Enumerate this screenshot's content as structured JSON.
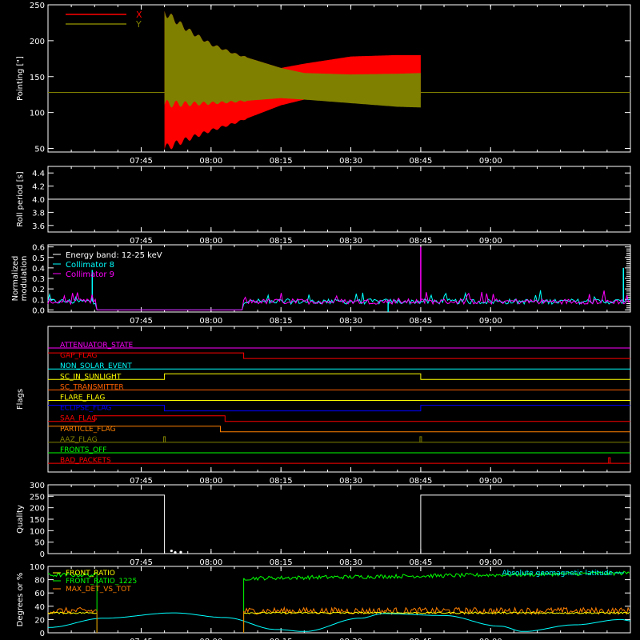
{
  "time_axis": {
    "range_min": [
      25,
      150
    ],
    "tick_labels": [
      "07:45",
      "08:00",
      "08:15",
      "08:30",
      "08:45",
      "09:00"
    ],
    "tick_values_min": [
      45,
      60,
      75,
      90,
      105,
      120
    ]
  },
  "colors": {
    "background": "#000000",
    "axes": "#ffffff",
    "red": "#ff0000",
    "olive": "#808000",
    "cyan": "#00ffff",
    "magenta": "#ff00ff",
    "white": "#ffffff",
    "green": "#00ff00",
    "orange": "#ff8000",
    "yellow": "#ffff00",
    "blue": "#0000ff",
    "sun_orange": "#ff6000"
  },
  "chart_data": [
    {
      "type": "area",
      "ylabel": "Pointing [\"]",
      "ylim": [
        45,
        250
      ],
      "yticks": [
        "50",
        "100",
        "150",
        "200",
        "250"
      ],
      "ytick_values": [
        50,
        100,
        150,
        200,
        250
      ],
      "legend_placement": "top-left",
      "series": [
        {
          "name": "X",
          "color": "red",
          "envelope": {
            "x": [
              50,
              55,
              60,
              65,
              75,
              80,
              90,
              100,
              105
            ],
            "ymin": [
              50,
              63,
              75,
              85,
              110,
              118,
              122,
              122,
              122
            ],
            "ymax": [
              240,
              215,
              195,
              182,
              162,
              168,
              178,
              180,
              180
            ]
          }
        },
        {
          "name": "Y",
          "color": "olive",
          "envelope": {
            "x": [
              50,
              55,
              60,
              65,
              75,
              80,
              90,
              100,
              105
            ],
            "ymin": [
              112,
              112,
              113,
              115,
              120,
              118,
              113,
              108,
              107
            ],
            "ymax": [
              240,
              215,
              195,
              182,
              162,
              155,
              153,
              154,
              155
            ]
          }
        }
      ],
      "reference_line": {
        "y": 128,
        "color": "olive"
      }
    },
    {
      "type": "line",
      "ylabel": "Roll period [s]",
      "ylim": [
        3.5,
        4.5
      ],
      "yticks": [
        "3.6",
        "3.8",
        "4.0",
        "4.2",
        "4.4"
      ],
      "ytick_values": [
        3.6,
        3.8,
        4.0,
        4.2,
        4.4
      ],
      "series": [
        {
          "color": "white",
          "x": [
            25,
            150
          ],
          "y": [
            4.0,
            4.0
          ]
        }
      ]
    },
    {
      "type": "line",
      "ylabel": "Normalized\nmodulation",
      "ylabel_lines": [
        "Normalized",
        "modulation"
      ],
      "ylim": [
        -0.02,
        0.62
      ],
      "yticks": [
        "0.0",
        "0.1",
        "0.2",
        "0.3",
        "0.4",
        "0.5",
        "0.6"
      ],
      "ytick_values": [
        0.0,
        0.1,
        0.2,
        0.3,
        0.4,
        0.5,
        0.6
      ],
      "legend_placement": "top-left",
      "legend": [
        {
          "label": "Energy band: 12-25 keV",
          "color": "white"
        },
        {
          "label": "Collimator 8",
          "color": "cyan"
        },
        {
          "label": "Collimator 9",
          "color": "magenta"
        }
      ],
      "series": [
        {
          "name": "Collimator 8",
          "color": "cyan",
          "baseline": 0.08,
          "gaps": [
            [
              35.5,
              67
            ]
          ],
          "spikes": [
            {
              "x": 34.5,
              "y": 0.38
            },
            {
              "x": 98,
              "y": -0.02
            },
            {
              "x": 148.5,
              "y": 0.4
            }
          ]
        },
        {
          "name": "Collimator 9",
          "color": "magenta",
          "baseline": 0.08,
          "gaps": [
            [
              35.5,
              67
            ]
          ],
          "spikes": [
            {
              "x": 105,
              "y": 0.6
            }
          ]
        }
      ]
    },
    {
      "type": "line",
      "ylabel": "Flags",
      "flags": [
        {
          "label": "ATTENUATOR_STATE",
          "color": "magenta",
          "segments": [
            [
              25,
              150,
              0
            ]
          ]
        },
        {
          "label": "GAP_FLAG",
          "color": "red",
          "segments": [
            [
              25,
              67,
              1
            ],
            [
              67,
              150,
              0
            ]
          ]
        },
        {
          "label": "NON_SOLAR_EVENT",
          "color": "cyan",
          "segments": [
            [
              25,
              150,
              0
            ]
          ]
        },
        {
          "label": "SC_IN_SUNLIGHT",
          "color": "yellow",
          "segments": [
            [
              25,
              50,
              0
            ],
            [
              50,
              105,
              1
            ],
            [
              105,
              150,
              0
            ]
          ]
        },
        {
          "label": "SC_TRANSMITTER",
          "color": "sun_orange",
          "segments": [
            [
              25,
              150,
              0
            ]
          ]
        },
        {
          "label": "FLARE_FLAG",
          "color": "yellow",
          "segments": [
            [
              25,
              150,
              0
            ]
          ]
        },
        {
          "label": "ECLIPSE_FLAG",
          "color": "blue",
          "segments": [
            [
              25,
              50,
              1
            ],
            [
              50,
              105,
              0
            ],
            [
              105,
              150,
              1
            ]
          ]
        },
        {
          "label": "SAA_FLAG",
          "color": "red",
          "segments": [
            [
              25,
              35,
              0
            ],
            [
              35,
              63,
              1
            ],
            [
              63,
              150,
              0
            ]
          ]
        },
        {
          "label": "PARTICLE_FLAG",
          "color": "orange",
          "segments": [
            [
              25,
              62,
              1
            ],
            [
              62,
              150,
              0
            ]
          ]
        },
        {
          "label": "AAZ_FLAG",
          "color": "olive",
          "segments": [
            [
              25,
              150,
              0
            ]
          ],
          "pulses": [
            50,
            105
          ]
        },
        {
          "label": "FRONTS_OFF",
          "color": "green",
          "segments": [
            [
              25,
              150,
              0
            ]
          ]
        },
        {
          "label": "BAD_PACKETS",
          "color": "red",
          "segments": [
            [
              25,
              150,
              0
            ]
          ],
          "pulses": [
            145.5
          ]
        }
      ]
    },
    {
      "type": "line",
      "ylabel": "Quality",
      "ylim": [
        0,
        300
      ],
      "yticks": [
        "0",
        "50",
        "100",
        "150",
        "200",
        "250",
        "300"
      ],
      "ytick_values": [
        0,
        50,
        100,
        150,
        200,
        250,
        300
      ],
      "series": [
        {
          "color": "white",
          "x": [
            25,
            50,
            50,
            105,
            105,
            150
          ],
          "y": [
            255,
            255,
            0,
            0,
            255,
            255
          ],
          "points": [
            {
              "x": 51.5,
              "y": 12
            },
            {
              "x": 52.3,
              "y": 5
            },
            {
              "x": 53.5,
              "y": 6
            }
          ]
        }
      ]
    },
    {
      "type": "line",
      "ylabel": "Degrees or %",
      "ylim": [
        0,
        100
      ],
      "yticks": [
        "0",
        "20",
        "40",
        "60",
        "80",
        "100"
      ],
      "ytick_values": [
        0,
        20,
        40,
        60,
        80,
        100
      ],
      "legend_placement": "top-left",
      "legend": [
        {
          "label": "FRONT_RATIO",
          "color": "yellow"
        },
        {
          "label": "FRONT_RATIO_1225",
          "color": "green"
        },
        {
          "label": "MAX_DET_VS_TOT",
          "color": "orange"
        }
      ],
      "right_label": {
        "label": "Absolute geomagnetic latitude",
        "color": "cyan"
      },
      "series": [
        {
          "name": "FRONT_RATIO_1225",
          "color": "green",
          "segments": [
            {
              "x": [
                25,
                35.5
              ],
              "level": 87
            },
            {
              "x": [
                67,
                150
              ],
              "level_start": 82,
              "level_end": 90
            }
          ]
        },
        {
          "name": "MAX_DET_VS_TOT",
          "color": "orange",
          "segments": [
            {
              "x": [
                25,
                35.5
              ],
              "level": 33
            },
            {
              "x": [
                67,
                150
              ],
              "level": 33
            }
          ]
        },
        {
          "name": "FRONT_RATIO",
          "color": "yellow",
          "segments": [
            {
              "x": [
                25,
                35.5
              ],
              "level": 30
            },
            {
              "x": [
                67,
                150
              ],
              "level": 30
            }
          ]
        },
        {
          "name": "Absolute geomagnetic latitude",
          "color": "cyan",
          "x": [
            25,
            37,
            52,
            63,
            74,
            80,
            92,
            97,
            110,
            122,
            127,
            138,
            148,
            150
          ],
          "y": [
            8,
            22,
            30,
            23,
            5,
            2,
            22,
            29,
            26,
            10,
            2,
            12,
            20,
            18
          ]
        }
      ]
    }
  ]
}
